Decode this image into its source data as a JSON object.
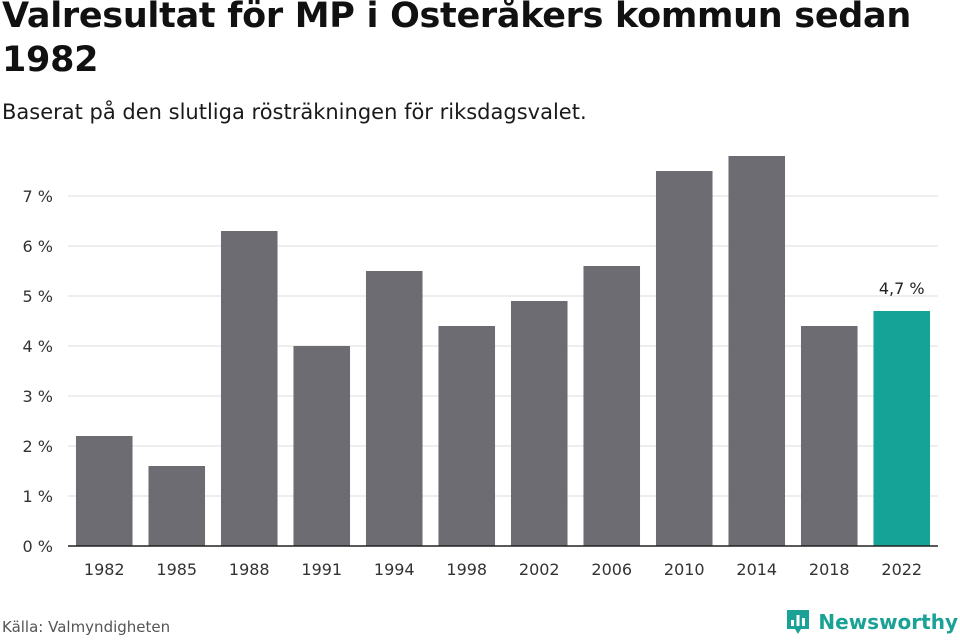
{
  "header": {
    "title": "Valresultat för MP i Österåkers kommun sedan 1982",
    "subtitle": "Baserat på den slutliga rösträkningen för riksdagsvalet."
  },
  "footer": {
    "source": "Källa: Valmyndigheten",
    "brand": "Newsworthy",
    "logo_icon": "bar-chart-logo-icon"
  },
  "colors": {
    "bar": "#6d6c72",
    "highlight": "#14a396",
    "grid": "#dcdcdc",
    "axis": "#222222"
  },
  "chart_data": {
    "type": "bar",
    "title": "Valresultat för MP i Österåkers kommun sedan 1982",
    "xlabel": "",
    "ylabel": "",
    "categories": [
      "1982",
      "1985",
      "1988",
      "1991",
      "1994",
      "1998",
      "2002",
      "2006",
      "2010",
      "2014",
      "2018",
      "2022"
    ],
    "values": [
      2.2,
      1.6,
      6.3,
      4.0,
      5.5,
      4.4,
      4.9,
      5.6,
      7.5,
      7.8,
      4.4,
      4.7
    ],
    "ylim": [
      0,
      8
    ],
    "yticks": [
      0,
      1,
      2,
      3,
      4,
      5,
      6,
      7
    ],
    "ytick_labels": [
      "0 %",
      "1 %",
      "2 %",
      "3 %",
      "4 %",
      "5 %",
      "6 %",
      "7 %"
    ],
    "grid": true,
    "highlight_index": 11,
    "data_labels": [
      {
        "index": 11,
        "text": "4,7 %"
      }
    ]
  }
}
